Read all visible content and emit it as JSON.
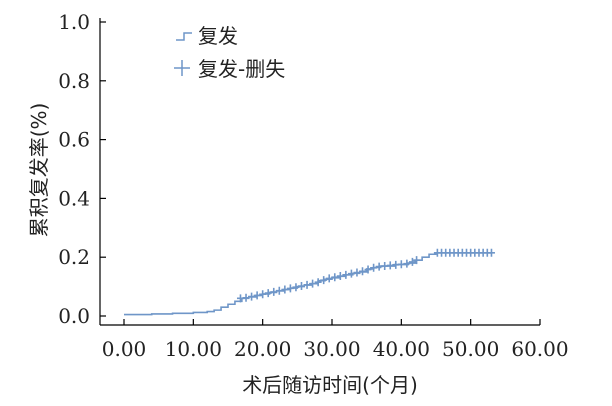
{
  "chart_data": {
    "type": "line",
    "xlabel": "术后随访时间(个月)",
    "ylabel": "累积复发率(%)",
    "xlim": [
      0,
      60
    ],
    "ylim": [
      0,
      1.0
    ],
    "x_ticks": [
      "0.00",
      "10.00",
      "20.00",
      "30.00",
      "40.00",
      "50.00",
      "60.00"
    ],
    "y_ticks": [
      "0.0",
      "0.2",
      "0.4",
      "0.6",
      "0.8",
      "1.0"
    ],
    "grid": false,
    "legend_position": "top-left",
    "colors": {
      "series": "#6f96c8",
      "axis": "#000000"
    },
    "series": [
      {
        "name": "复发",
        "step": true,
        "points": [
          [
            0,
            0.005
          ],
          [
            4,
            0.007
          ],
          [
            7,
            0.009
          ],
          [
            10,
            0.012
          ],
          [
            12,
            0.015
          ],
          [
            13,
            0.02
          ],
          [
            14,
            0.03
          ],
          [
            15,
            0.04
          ],
          [
            16,
            0.05
          ],
          [
            17,
            0.06
          ],
          [
            18,
            0.065
          ],
          [
            19,
            0.07
          ],
          [
            20,
            0.075
          ],
          [
            21,
            0.08
          ],
          [
            22,
            0.085
          ],
          [
            23,
            0.09
          ],
          [
            24,
            0.095
          ],
          [
            25,
            0.1
          ],
          [
            26,
            0.105
          ],
          [
            27,
            0.11
          ],
          [
            28,
            0.12
          ],
          [
            29,
            0.125
          ],
          [
            30,
            0.13
          ],
          [
            31,
            0.135
          ],
          [
            32,
            0.14
          ],
          [
            33,
            0.145
          ],
          [
            34,
            0.15
          ],
          [
            35,
            0.16
          ],
          [
            36,
            0.165
          ],
          [
            37,
            0.17
          ],
          [
            38,
            0.17
          ],
          [
            39,
            0.175
          ],
          [
            40,
            0.175
          ],
          [
            41,
            0.18
          ],
          [
            42,
            0.19
          ],
          [
            43,
            0.2
          ],
          [
            44,
            0.21
          ],
          [
            45,
            0.215
          ],
          [
            46,
            0.215
          ],
          [
            48,
            0.215
          ],
          [
            50,
            0.215
          ],
          [
            52,
            0.215
          ],
          [
            53,
            0.215
          ]
        ]
      },
      {
        "name": "复发-删失",
        "censored_points": [
          [
            16.8,
            0.06
          ],
          [
            17.6,
            0.062
          ],
          [
            18.4,
            0.066
          ],
          [
            19.2,
            0.07
          ],
          [
            20.0,
            0.074
          ],
          [
            20.8,
            0.078
          ],
          [
            21.6,
            0.082
          ],
          [
            22.4,
            0.086
          ],
          [
            23.2,
            0.09
          ],
          [
            24.0,
            0.094
          ],
          [
            24.8,
            0.098
          ],
          [
            25.6,
            0.102
          ],
          [
            26.4,
            0.106
          ],
          [
            27.2,
            0.11
          ],
          [
            28.0,
            0.115
          ],
          [
            28.8,
            0.122
          ],
          [
            29.6,
            0.128
          ],
          [
            30.4,
            0.132
          ],
          [
            31.2,
            0.136
          ],
          [
            32.0,
            0.14
          ],
          [
            32.8,
            0.144
          ],
          [
            33.6,
            0.148
          ],
          [
            34.4,
            0.152
          ],
          [
            35.2,
            0.158
          ],
          [
            36.0,
            0.164
          ],
          [
            36.8,
            0.168
          ],
          [
            37.6,
            0.17
          ],
          [
            38.4,
            0.172
          ],
          [
            39.2,
            0.174
          ],
          [
            40.0,
            0.176
          ],
          [
            40.8,
            0.178
          ],
          [
            41.6,
            0.184
          ],
          [
            42.2,
            0.19
          ],
          [
            45.2,
            0.215
          ],
          [
            45.8,
            0.215
          ],
          [
            46.4,
            0.215
          ],
          [
            47.0,
            0.215
          ],
          [
            47.6,
            0.215
          ],
          [
            48.2,
            0.215
          ],
          [
            48.8,
            0.215
          ],
          [
            49.4,
            0.215
          ],
          [
            50.0,
            0.215
          ],
          [
            50.6,
            0.215
          ],
          [
            51.2,
            0.215
          ],
          [
            51.8,
            0.215
          ],
          [
            52.4,
            0.215
          ],
          [
            53.0,
            0.215
          ]
        ]
      }
    ]
  }
}
